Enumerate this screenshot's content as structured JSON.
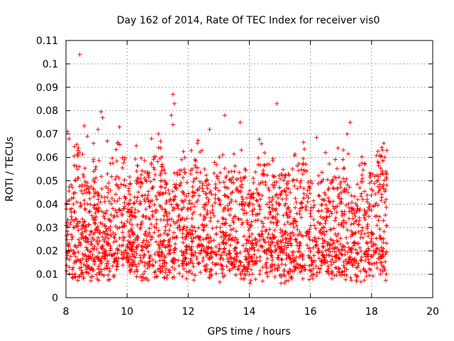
{
  "chart_data": {
    "type": "scatter",
    "title": "Day 162 of 2014, Rate Of TEC Index for receiver vis0",
    "xlabel": "GPS time / hours",
    "ylabel": "ROTI / TECUs",
    "xlim": [
      8,
      20
    ],
    "ylim": [
      0,
      0.11
    ],
    "x_ticks": [
      8,
      10,
      12,
      14,
      16,
      18,
      20
    ],
    "x_tick_labels": [
      "8",
      "10",
      "12",
      "14",
      "16",
      "18",
      "20"
    ],
    "y_ticks": [
      0,
      0.01,
      0.02,
      0.03,
      0.04,
      0.05,
      0.06,
      0.07,
      0.08,
      0.09,
      0.1,
      0.11
    ],
    "y_tick_labels": [
      "0",
      "0.01",
      "0.02",
      "0.03",
      "0.04",
      "0.05",
      "0.06",
      "0.07",
      "0.08",
      "0.09",
      "0.1",
      "0.11"
    ],
    "grid": true,
    "marker": "plus",
    "color": "#ff0000",
    "data_range_x": [
      8.0,
      18.5
    ],
    "series": [
      {
        "name": "ROTI",
        "x": [
          8.45,
          8.6,
          8.7,
          9.05,
          9.15,
          9.2,
          9.35,
          9.75,
          11.5,
          11.55,
          11.45,
          11.5,
          12.7,
          13.2,
          13.7,
          14.9,
          15.8,
          16.2,
          17.2,
          17.3,
          18.4,
          18.5,
          8.05,
          8.1,
          8.9,
          10.3,
          10.8,
          12.3,
          14.5,
          16.9
        ],
        "y": [
          0.104,
          0.0735,
          0.069,
          0.072,
          0.0795,
          0.077,
          0.067,
          0.073,
          0.087,
          0.083,
          0.078,
          0.074,
          0.072,
          0.078,
          0.075,
          0.083,
          0.0635,
          0.0685,
          0.07,
          0.075,
          0.066,
          0.063,
          0.071,
          0.068,
          0.066,
          0.065,
          0.068,
          0.066,
          0.062,
          0.064
        ]
      }
    ]
  }
}
